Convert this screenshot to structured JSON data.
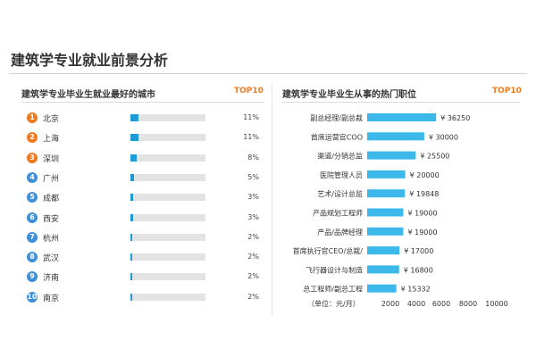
{
  "title": "建筑学专业就业前景分析",
  "accent_colors": {
    "blue_bar": "#1e9ad6",
    "cyan_bar": "#3cb9ea",
    "orange": "#f07a1e",
    "rank_blue": "#3d8fd8"
  },
  "left_panel": {
    "heading": "建筑学专业毕业生就业最好的城市",
    "badge": "TOP10",
    "cities": [
      {
        "rank": "1",
        "name": "北京",
        "percent_label": "11%",
        "value": 11
      },
      {
        "rank": "2",
        "name": "上海",
        "percent_label": "11%",
        "value": 11
      },
      {
        "rank": "3",
        "name": "深圳",
        "percent_label": "8%",
        "value": 8
      },
      {
        "rank": "4",
        "name": "广州",
        "percent_label": "5%",
        "value": 5
      },
      {
        "rank": "5",
        "name": "成都",
        "percent_label": "3%",
        "value": 3
      },
      {
        "rank": "6",
        "name": "西安",
        "percent_label": "3%",
        "value": 3
      },
      {
        "rank": "7",
        "name": "杭州",
        "percent_label": "2%",
        "value": 2
      },
      {
        "rank": "8",
        "name": "武汉",
        "percent_label": "2%",
        "value": 2
      },
      {
        "rank": "9",
        "name": "济南",
        "percent_label": "2%",
        "value": 2
      },
      {
        "rank": "10",
        "name": "南京",
        "percent_label": "2%",
        "value": 2
      }
    ]
  },
  "chart_data": {
    "type": "bar",
    "orientation": "horizontal",
    "title": "建筑学专业毕业生从事的热门职位",
    "badge": "TOP10",
    "categories": [
      "副总经理/副总裁",
      "首席运营官COO",
      "渠道/分销总监",
      "医院管理人员",
      "艺术/设计总监",
      "产品规划工程师",
      "产品/品牌经理",
      "首席执行官CEO/总裁/",
      "飞行器设计与制造",
      "总工程师/副总工程"
    ],
    "values": [
      36250,
      30000,
      25500,
      20000,
      19848,
      19000,
      19000,
      17000,
      16800,
      15332
    ],
    "value_labels": [
      "¥ 36250",
      "¥ 30000",
      "¥ 25500",
      "¥ 20000",
      "¥ 19848",
      "¥ 19000",
      "¥ 19000",
      "¥ 17000",
      "¥ 16800",
      "¥ 15332"
    ],
    "xlabel": "（单位：元/月）",
    "x_ticks": [
      "2000",
      "4000",
      "6000",
      "8000",
      "10000"
    ],
    "grid": false
  }
}
